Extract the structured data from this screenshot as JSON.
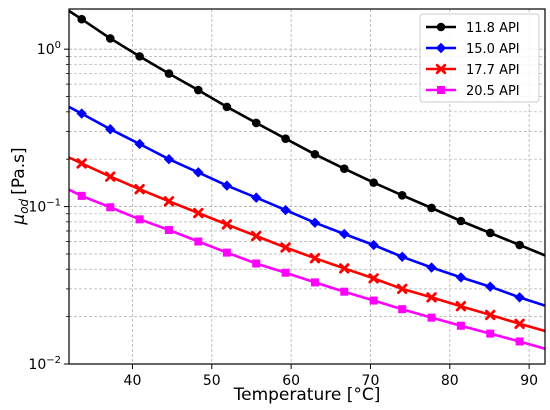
{
  "chart_data": {
    "type": "line",
    "xlabel": "Temperature [°C]",
    "ylabel_base": "μ",
    "ylabel_sub": "od",
    "ylabel_unit": "[Pa.s]",
    "xlim": [
      32,
      92
    ],
    "ylim": [
      0.01,
      1.8
    ],
    "yscale": "log",
    "grid": true,
    "legend_position": "top-right",
    "x_ticks": [
      40,
      50,
      60,
      70,
      80,
      90
    ],
    "y_tick_labels": [
      {
        "value": 1,
        "base": "10",
        "exp": "0"
      },
      {
        "value": 0.1,
        "base": "10",
        "exp": "−1"
      },
      {
        "value": 0.01,
        "base": "10",
        "exp": "−2"
      }
    ],
    "series": [
      {
        "name": "11.8 API",
        "color": "#000000",
        "marker": "circle",
        "x": [
          32,
          33.6,
          37.2,
          40.9,
          44.6,
          48.3,
          51.9,
          55.6,
          59.3,
          63.0,
          66.7,
          70.4,
          74.0,
          77.7,
          81.4,
          85.1,
          88.8,
          92
        ],
        "y": [
          1.75,
          1.55,
          1.17,
          0.9,
          0.7,
          0.55,
          0.43,
          0.34,
          0.27,
          0.215,
          0.174,
          0.142,
          0.118,
          0.098,
          0.081,
          0.068,
          0.057,
          0.049
        ]
      },
      {
        "name": "15.0 API",
        "color": "#0000ff",
        "marker": "diamond",
        "x": [
          32,
          33.6,
          37.2,
          40.9,
          44.6,
          48.3,
          51.9,
          55.6,
          59.3,
          63.0,
          66.7,
          70.4,
          74.0,
          77.7,
          81.4,
          85.1,
          88.8,
          92
        ],
        "y": [
          0.43,
          0.39,
          0.31,
          0.25,
          0.2,
          0.165,
          0.136,
          0.114,
          0.095,
          0.079,
          0.067,
          0.057,
          0.048,
          0.041,
          0.0355,
          0.031,
          0.0265,
          0.0235
        ]
      },
      {
        "name": "17.7 API",
        "color": "#ff0000",
        "marker": "x",
        "x": [
          32,
          33.6,
          37.2,
          40.9,
          44.6,
          48.3,
          51.9,
          55.6,
          59.3,
          63.0,
          66.7,
          70.4,
          74.0,
          77.7,
          81.4,
          85.1,
          88.8,
          92
        ],
        "y": [
          0.205,
          0.188,
          0.155,
          0.129,
          0.108,
          0.091,
          0.077,
          0.065,
          0.055,
          0.047,
          0.0405,
          0.035,
          0.03,
          0.0265,
          0.0233,
          0.0205,
          0.018,
          0.0162
        ]
      },
      {
        "name": "20.5 API",
        "color": "#ff00ff",
        "marker": "square",
        "x": [
          32,
          33.6,
          37.2,
          40.9,
          44.6,
          48.3,
          51.9,
          55.6,
          59.3,
          63.0,
          66.7,
          70.4,
          74.0,
          77.7,
          81.4,
          85.1,
          88.8,
          92
        ],
        "y": [
          0.128,
          0.117,
          0.099,
          0.083,
          0.071,
          0.06,
          0.051,
          0.0435,
          0.038,
          0.033,
          0.0288,
          0.0253,
          0.0223,
          0.0197,
          0.0175,
          0.0156,
          0.0139,
          0.0125
        ]
      }
    ]
  }
}
